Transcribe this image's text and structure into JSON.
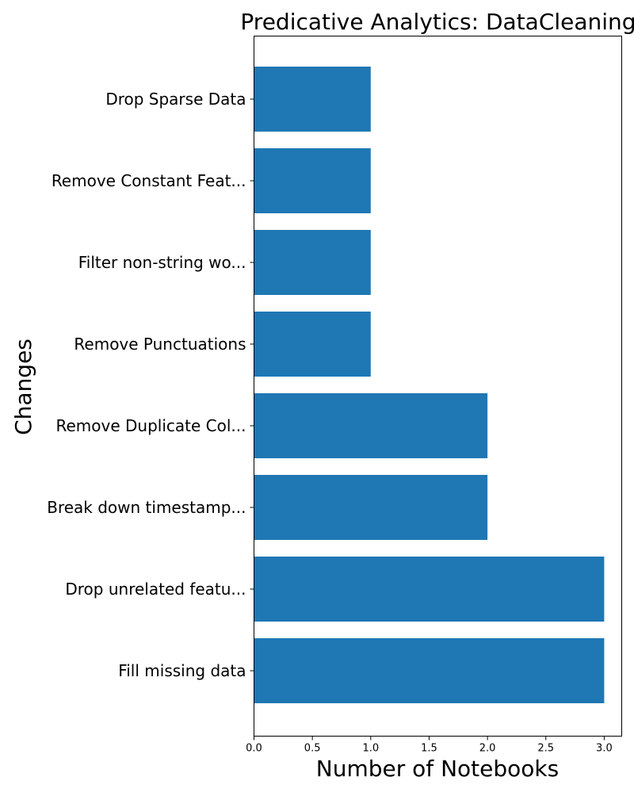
{
  "chart_data": {
    "type": "bar",
    "orientation": "horizontal",
    "title": "Predicative Analytics: DataCleaning",
    "xlabel": "Number of Notebooks",
    "ylabel": "Changes",
    "categories": [
      "Fill missing data",
      "Drop unrelated featu...",
      "Break down timestamp...",
      "Remove Duplicate Col...",
      "Remove Punctuations",
      "Filter non-string wo...",
      "Remove Constant Feat...",
      "Drop Sparse Data"
    ],
    "values": [
      3,
      3,
      2,
      2,
      1,
      1,
      1,
      1
    ],
    "xlim": [
      0,
      3.15
    ],
    "xticks": [
      "0.0",
      "0.5",
      "1.0",
      "1.5",
      "2.0",
      "2.5",
      "3.0"
    ],
    "grid": false,
    "bar_color": "#1f77b4"
  }
}
